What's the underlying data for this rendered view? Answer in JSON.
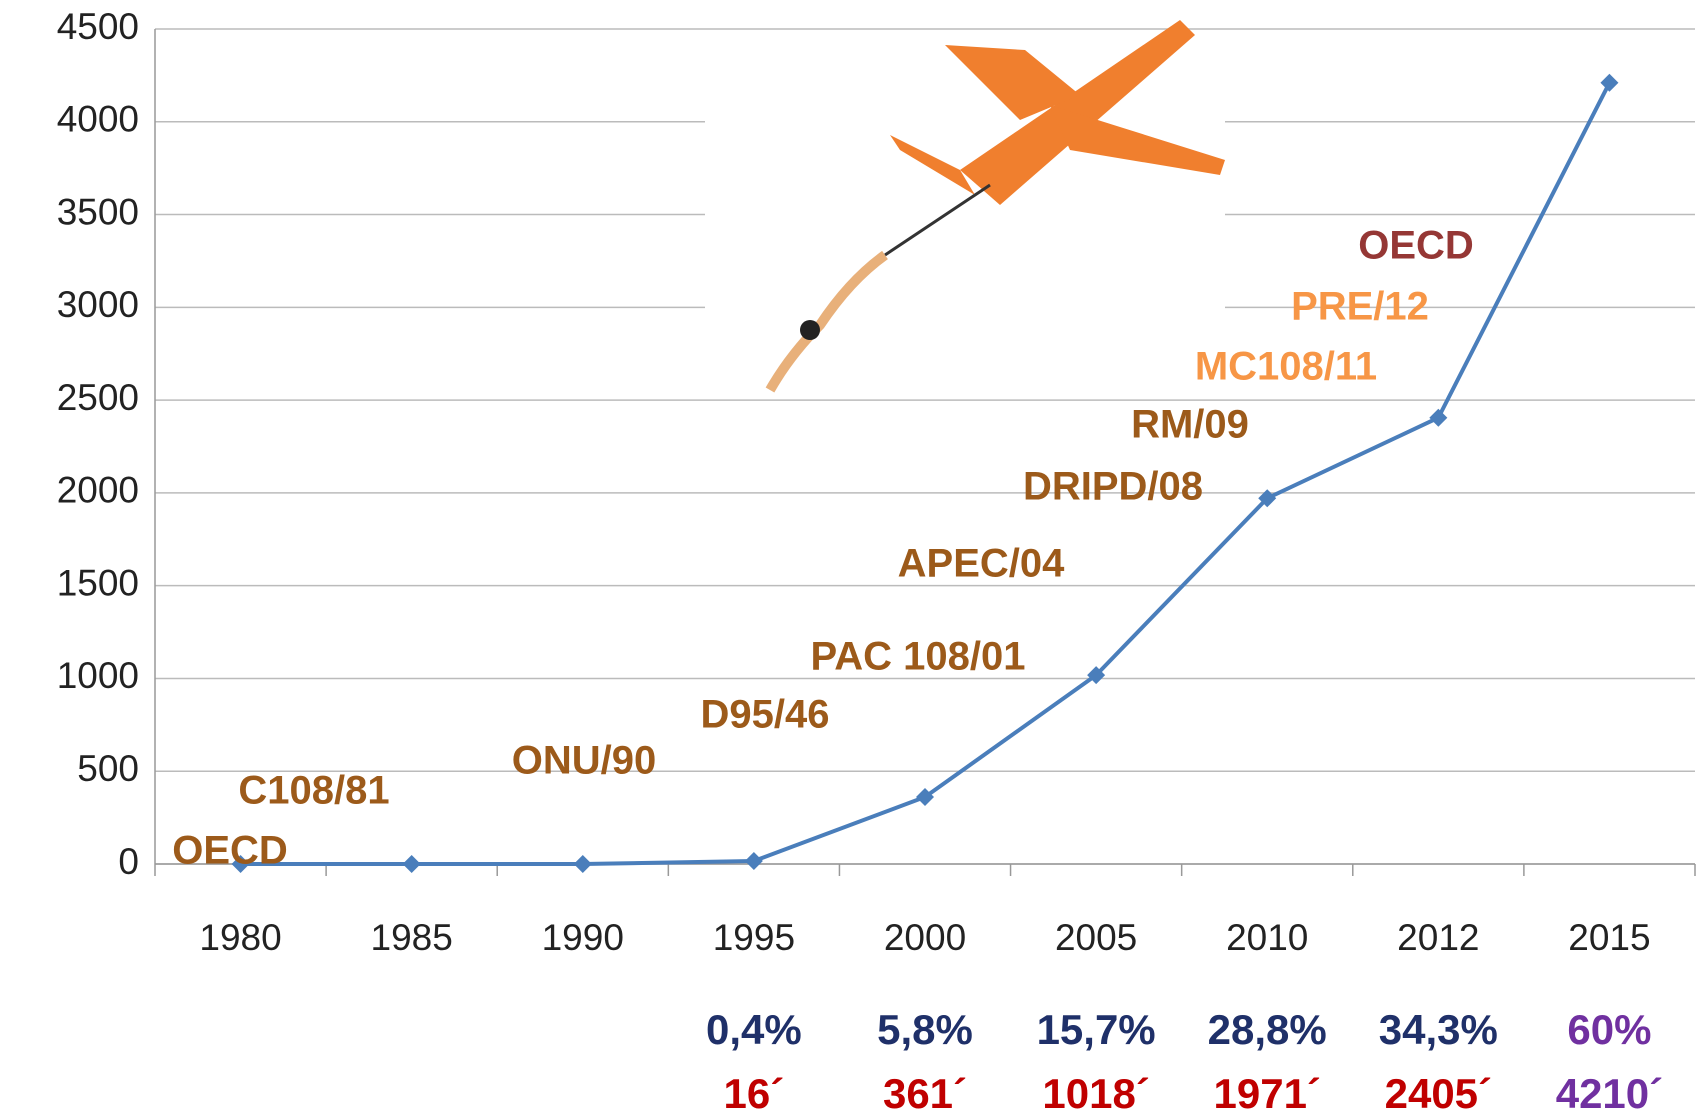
{
  "chart_data": {
    "type": "line",
    "categories": [
      "1980",
      "1985",
      "1990",
      "1995",
      "2000",
      "2005",
      "2010",
      "2012",
      "2015"
    ],
    "series": [
      {
        "color": "#4a7ebb",
        "values": [
          0,
          0,
          0,
          16,
          361,
          1018,
          1971,
          2405,
          4210
        ],
        "value_labels": [
          null,
          null,
          null,
          "16´",
          "361´",
          "1018´",
          "1971´",
          "2405´",
          "4210´"
        ]
      }
    ],
    "percent_labels": [
      null,
      null,
      null,
      "0,4%",
      "5,8%",
      "15,7%",
      "28,8%",
      "34,3%",
      "60%"
    ],
    "percent_color": "#1f3069",
    "value_label_color": "#c00000",
    "highlight_color": "#7030a0",
    "ylim": [
      0,
      4500
    ],
    "yticks": [
      0,
      500,
      1000,
      1500,
      2000,
      2500,
      3000,
      3500,
      4000,
      4500
    ],
    "grid": true,
    "annotations": [
      {
        "text": "OECD",
        "color": "#9c5a1a"
      },
      {
        "text": "C108/81",
        "color": "#9c5a1a"
      },
      {
        "text": "ONU/90",
        "color": "#9c5a1a"
      },
      {
        "text": "D95/46",
        "color": "#9c5a1a"
      },
      {
        "text": "PAC 108/01",
        "color": "#9c5a1a"
      },
      {
        "text": "APEC/04",
        "color": "#9c5a1a"
      },
      {
        "text": "DRIPD/08",
        "color": "#9c5a1a"
      },
      {
        "text": "RM/09",
        "color": "#9c5a1a"
      },
      {
        "text": "MC108/11",
        "color": "#f79646"
      },
      {
        "text": "PRE/12",
        "color": "#f79646"
      },
      {
        "text": "OECD",
        "color": "#953735"
      }
    ]
  }
}
